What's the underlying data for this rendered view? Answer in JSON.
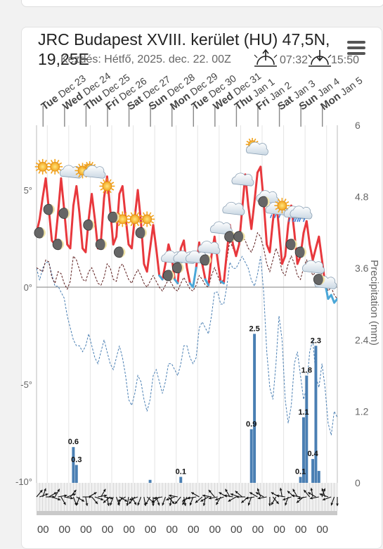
{
  "header": {
    "title": "JRC Budapest XVIII. kerület (HU) 47,5N, 19,25E",
    "subtitle": "Kezdés: Hétfő, 2025. dec. 22. 00Z",
    "sunrise": "07:32",
    "sunset": "15:50"
  },
  "icons": {
    "menu": "hamburger-menu-icon",
    "sunrise": "sunrise-icon",
    "sunset": "sunset-icon"
  },
  "colors": {
    "temperature": "#e8383d",
    "temperature_below_zero": "#4aa7d8",
    "dewpoint": "#5a1a1a",
    "precip_bar": "#4a7fb3",
    "precip_cumulative": "#4a7fb3",
    "sun": "#f2a31c"
  },
  "chart_data": {
    "type": "line",
    "days": [
      "Tue Dec 23",
      "Wed Dec 24",
      "Thu Dec 25",
      "Fri Dec 26",
      "Sat Dec 27",
      "Sun Dec 28",
      "Mon Dec 29",
      "Tue Dec 30",
      "Wed Dec 31",
      "Thu Jan 1",
      "Fri Jan 2",
      "Sat Jan 3",
      "Sun Jan 4",
      "Mon Jan 5"
    ],
    "y_left": {
      "ticks": [
        "5°",
        "0°",
        "-5°",
        "-10°"
      ],
      "values": [
        5,
        0,
        -5,
        -10
      ],
      "range": [
        -10,
        10
      ]
    },
    "y_right": {
      "label": "Precipitation (mm)",
      "ticks": [
        "6",
        "4.8",
        "3.6",
        "2.4",
        "1.2",
        "0"
      ],
      "values": [
        6,
        4.8,
        3.6,
        2.4,
        1.2,
        0
      ],
      "range": [
        0,
        6
      ]
    },
    "bottom_labels": [
      "00",
      "00",
      "00",
      "00",
      "00",
      "00",
      "00",
      "00",
      "00",
      "00",
      "00",
      "00",
      "00",
      "00"
    ],
    "grid": true,
    "series": [
      {
        "kind": "temperature",
        "values": [
          2.8,
          3.5,
          4.6,
          5.6,
          4.0,
          2.4,
          2.2,
          3.8,
          5.6,
          4.0,
          2.2,
          2.0,
          4.2,
          5.2,
          3.8,
          2.0,
          1.8,
          3.5,
          4.8,
          3.5,
          2.0,
          2.4,
          4.6,
          5.7,
          4.0,
          2.2,
          2.6,
          4.8,
          5.2,
          3.6,
          2.2,
          2.0,
          3.6,
          5.0,
          3.4,
          1.2,
          0.8,
          2.0,
          3.2,
          2.0,
          0.6,
          0.4,
          1.2,
          2.2,
          1.6,
          0.4,
          0.2,
          2.0,
          2.4,
          1.0,
          0.2,
          0.0,
          1.0,
          2.3,
          1.2,
          0.4,
          0.1,
          1.6,
          2.6,
          1.4,
          0.3,
          0.2,
          1.8,
          3.2,
          2.2,
          1.6,
          2.2,
          4.0,
          5.8,
          4.2,
          3.0,
          4.4,
          5.9,
          6.2,
          4.4,
          2.2,
          1.8,
          3.4,
          4.6,
          3.0,
          1.2,
          1.6,
          3.2,
          4.2,
          2.8,
          1.2,
          1.6,
          2.8,
          3.4,
          2.2,
          1.4,
          2.0,
          2.6,
          1.4,
          0.2,
          -0.6,
          -0.4,
          -0.8,
          -0.6
        ]
      },
      {
        "kind": "dewpoint",
        "values": [
          1.0,
          0.9,
          0.8,
          1.4,
          1.3,
          0.5,
          0.2,
          0.8,
          0.7,
          0.2,
          -0.1,
          0.3,
          1.6,
          1.4,
          0.9,
          0.4,
          0.3,
          0.8,
          1.0,
          0.6,
          0.2,
          0.1,
          0.5,
          1.2,
          1.0,
          0.4,
          0.3,
          1.0,
          1.2,
          0.8,
          0.4,
          0.2,
          0.6,
          0.9,
          0.6,
          0.2,
          0.0,
          0.3,
          0.6,
          0.3,
          0.0,
          -0.2,
          0.1,
          0.4,
          0.2,
          -0.1,
          -0.2,
          0.2,
          0.5,
          0.2,
          -0.1,
          -0.2,
          0.1,
          0.6,
          0.4,
          0.1,
          0.0,
          0.6,
          1.0,
          0.6,
          0.2,
          0.4,
          1.4,
          2.4,
          2.0,
          1.8,
          2.2,
          2.6,
          2.4,
          2.0,
          1.8,
          2.2,
          2.8,
          2.6,
          2.0,
          1.2,
          0.8,
          1.4,
          2.0,
          1.6,
          0.8,
          0.6,
          1.2,
          1.6,
          1.2,
          0.6,
          0.4,
          1.0,
          1.4,
          1.0,
          0.6,
          0.8,
          1.0,
          0.6,
          0.2,
          -0.2,
          0.0,
          -0.4,
          -0.6
        ]
      },
      {
        "kind": "precip_cumulative",
        "values": [
          3.6,
          3.4,
          3.6,
          3.7,
          3.7,
          3.5,
          3.3,
          3.3,
          3.2,
          3.1,
          2.8,
          2.6,
          2.4,
          2.3,
          2.3,
          2.2,
          2.3,
          2.5,
          2.3,
          2.1,
          2.0,
          2.2,
          2.4,
          2.2,
          2.0,
          1.9,
          2.1,
          2.3,
          2.1,
          1.8,
          1.4,
          1.3,
          1.5,
          1.8,
          1.7,
          1.4,
          1.2,
          1.4,
          1.8,
          1.9,
          1.7,
          1.5,
          1.7,
          2.0,
          2.0,
          1.9,
          1.8,
          2.0,
          2.3,
          2.3,
          2.1,
          2.0,
          2.1,
          2.6,
          2.7,
          2.6,
          2.5,
          2.8,
          3.2,
          3.2,
          3.0,
          3.0,
          3.3,
          3.7,
          3.6,
          3.6,
          3.7,
          3.8,
          3.7,
          3.6,
          3.4,
          3.3,
          3.5,
          3.8,
          3.2,
          2.2,
          1.6,
          1.4,
          2.0,
          2.8,
          2.4,
          1.4,
          1.0,
          1.3,
          2.0,
          2.2,
          1.8,
          1.4,
          1.6,
          2.2,
          2.4,
          1.8,
          1.6,
          2.0,
          1.6,
          1.0,
          0.8,
          1.2,
          1.1
        ]
      }
    ],
    "precip_bars": [
      {
        "index": 12,
        "value": 0.6
      },
      {
        "index": 13,
        "value": 0.3
      },
      {
        "index": 37,
        "value": 0.05
      },
      {
        "index": 47,
        "value": 0.1
      },
      {
        "index": 70,
        "value": 0.9
      },
      {
        "index": 71,
        "value": 2.5
      },
      {
        "index": 86,
        "value": 0.1
      },
      {
        "index": 87,
        "value": 1.1
      },
      {
        "index": 88,
        "value": 1.8
      },
      {
        "index": 90,
        "value": 0.4
      },
      {
        "index": 91,
        "value": 2.3
      },
      {
        "index": 92,
        "value": 0.2
      }
    ],
    "precip_labels": [
      {
        "index": 12,
        "text": "0.6",
        "value": 0.6
      },
      {
        "index": 13,
        "text": "0.3",
        "value": 0.3
      },
      {
        "index": 47,
        "text": "0.1",
        "value": 0.1
      },
      {
        "index": 70,
        "text": "0.9",
        "value": 0.9
      },
      {
        "index": 71,
        "text": "2.5",
        "value": 2.5
      },
      {
        "index": 86,
        "text": "0.1",
        "value": 0.1
      },
      {
        "index": 87,
        "text": "1.1",
        "value": 1.1
      },
      {
        "index": 88,
        "text": "1.8",
        "value": 1.8
      },
      {
        "index": 90,
        "text": "0.4",
        "value": 0.4
      },
      {
        "index": 91,
        "text": "2.3",
        "value": 2.3
      }
    ],
    "weather_icons": [
      {
        "index": 2,
        "temp": 6.2,
        "icon": "sun-icon"
      },
      {
        "index": 6,
        "temp": 6.2,
        "icon": "sun-icon"
      },
      {
        "index": 11,
        "temp": 5.9,
        "icon": "cloud-icon"
      },
      {
        "index": 15,
        "temp": 6.0,
        "icon": "sun-icon"
      },
      {
        "index": 18,
        "temp": 6.0,
        "icon": "partly-cloudy-icon"
      },
      {
        "index": 23,
        "temp": 5.2,
        "icon": "sun-icon"
      },
      {
        "index": 28,
        "temp": 3.5,
        "icon": "sun-icon"
      },
      {
        "index": 32,
        "temp": 3.5,
        "icon": "sun-icon"
      },
      {
        "index": 36,
        "temp": 3.5,
        "icon": "sun-icon"
      },
      {
        "index": 44,
        "temp": 1.5,
        "icon": "cloud-icon"
      },
      {
        "index": 48,
        "temp": 1.5,
        "icon": "cloud-icon"
      },
      {
        "index": 52,
        "temp": 1.5,
        "icon": "cloud-icon"
      },
      {
        "index": 56,
        "temp": 2.0,
        "icon": "cloud-icon"
      },
      {
        "index": 60,
        "temp": 3.0,
        "icon": "cloud-icon"
      },
      {
        "index": 64,
        "temp": 4.0,
        "icon": "cloud-icon"
      },
      {
        "index": 67,
        "temp": 5.5,
        "icon": "cloud-icon"
      },
      {
        "index": 71,
        "temp": 7.2,
        "icon": "partly-cloudy-icon"
      },
      {
        "index": 75,
        "temp": 4.6,
        "icon": "cloud-icon"
      },
      {
        "index": 78,
        "temp": 4.0,
        "icon": "rain-cloud-icon"
      },
      {
        "index": 80,
        "temp": 4.2,
        "icon": "sun-icon"
      },
      {
        "index": 84,
        "temp": 3.8,
        "icon": "rain-cloud-icon"
      },
      {
        "index": 86,
        "temp": 3.8,
        "icon": "rain-cloud-icon"
      },
      {
        "index": 90,
        "temp": 1.0,
        "icon": "cloud-icon"
      },
      {
        "index": 94,
        "temp": 0.2,
        "icon": "cloud-icon"
      }
    ],
    "moon_icons": [
      {
        "index": 1,
        "temp": 2.8
      },
      {
        "index": 4,
        "temp": 4.0
      },
      {
        "index": 7,
        "temp": 2.2
      },
      {
        "index": 9,
        "temp": 3.8
      },
      {
        "index": 17,
        "temp": 3.2
      },
      {
        "index": 21,
        "temp": 2.2
      },
      {
        "index": 25,
        "temp": 3.6
      },
      {
        "index": 27,
        "temp": 1.8
      },
      {
        "index": 34,
        "temp": 2.8
      },
      {
        "index": 43,
        "temp": 0.6
      },
      {
        "index": 46,
        "temp": 1.0
      },
      {
        "index": 55,
        "temp": 1.4
      },
      {
        "index": 63,
        "temp": 2.6
      },
      {
        "index": 66,
        "temp": 2.6
      },
      {
        "index": 74,
        "temp": 4.4
      },
      {
        "index": 83,
        "temp": 2.2
      },
      {
        "index": 86,
        "temp": 1.8
      },
      {
        "index": 92,
        "temp": 0.4
      }
    ],
    "wind_dirs": [
      40,
      70,
      20,
      90,
      60,
      110,
      30,
      80,
      150,
      100,
      70,
      40,
      160,
      120,
      200,
      90,
      170,
      60,
      140,
      110,
      80,
      30,
      100,
      170,
      230,
      200,
      160,
      120,
      210,
      240,
      190,
      150,
      220,
      250,
      200,
      170,
      130,
      210,
      180,
      160,
      230,
      260,
      200,
      140,
      190,
      250,
      280,
      220,
      170,
      210,
      240,
      200,
      260,
      300,
      230,
      190,
      240,
      280,
      320,
      260,
      210,
      250,
      300,
      330,
      280,
      240,
      290,
      310,
      270,
      230,
      200,
      260,
      300,
      340,
      300,
      260,
      180,
      140,
      210,
      300,
      350,
      280,
      200,
      250,
      310,
      330,
      280,
      230,
      260,
      320,
      350,
      300,
      260,
      20,
      340,
      290,
      250,
      200,
      180
    ]
  }
}
